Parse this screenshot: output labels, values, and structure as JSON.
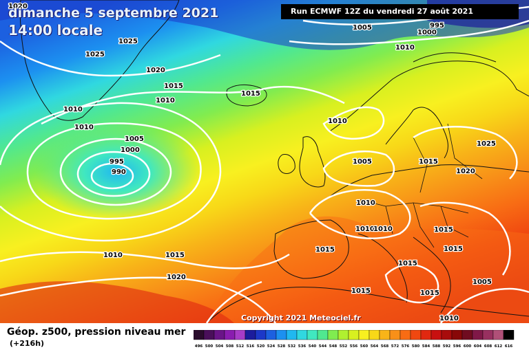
{
  "header": {
    "date_line": "dimanche 5 septembre 2021",
    "time_line": "14:00 locale",
    "run_info": "Run ECMWF 12Z du vendredi 27 août 2021"
  },
  "footer": {
    "copyright": "Copyright 2021 Meteociel.fr",
    "legend_title": "Géop. z500, pression niveau mer",
    "legend_subtitle": "(+216h)"
  },
  "legend": {
    "labels": [
      "496",
      "500",
      "504",
      "508",
      "512",
      "516",
      "520",
      "524",
      "528",
      "532",
      "536",
      "540",
      "544",
      "548",
      "552",
      "556",
      "560",
      "564",
      "568",
      "572",
      "576",
      "580",
      "584",
      "588",
      "592",
      "596",
      "600",
      "604",
      "608",
      "612",
      "616"
    ],
    "colors": [
      "#2a0c2c",
      "#4a0f5a",
      "#6a1488",
      "#8a1cb0",
      "#a83cc8",
      "#1c1c9c",
      "#1c38c8",
      "#1c60e0",
      "#1c90f0",
      "#20b8f0",
      "#30d8e0",
      "#40e8c0",
      "#50e890",
      "#80ec50",
      "#b0f030",
      "#d8f020",
      "#f8f020",
      "#f8d818",
      "#f8b418",
      "#f89018",
      "#f86c14",
      "#f04810",
      "#e02810",
      "#c81010",
      "#a80c0c",
      "#880808",
      "#700c20",
      "#801848",
      "#983060",
      "#b05078",
      "#000000"
    ]
  },
  "isobar_labels": [
    "1020",
    "1025",
    "1025",
    "1020",
    "1015",
    "1010",
    "1015",
    "1010",
    "1010",
    "1005",
    "1000",
    "995",
    "990",
    "1010",
    "1005",
    "1005",
    "1000",
    "995",
    "1010",
    "1025",
    "1015",
    "1020",
    "1005",
    "1010",
    "1010",
    "1010",
    "1010",
    "1015",
    "1010",
    "1015",
    "1015",
    "1020",
    "1015",
    "1015",
    "1015",
    "1005",
    "1015",
    "1010"
  ]
}
